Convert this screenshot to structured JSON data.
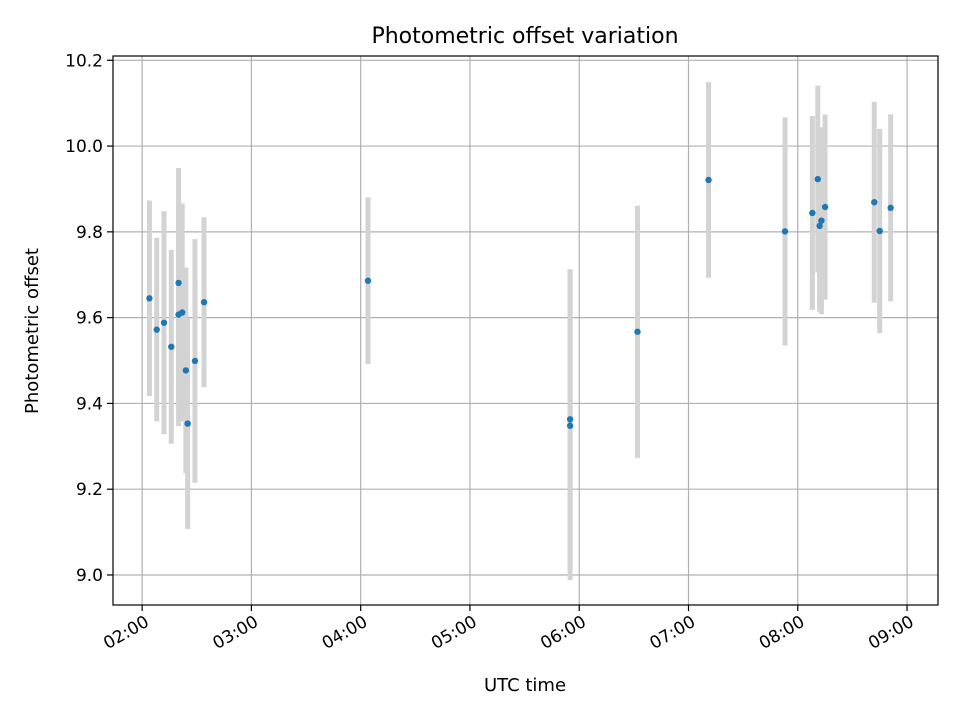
{
  "chart_data": {
    "type": "scatter",
    "title": "Photometric offset variation",
    "xlabel": "UTC time",
    "ylabel": "Photometric offset",
    "x_ticks": [
      "02:00",
      "03:00",
      "04:00",
      "05:00",
      "06:00",
      "07:00",
      "08:00",
      "09:00"
    ],
    "y_ticks": [
      "9.0",
      "9.2",
      "9.4",
      "9.6",
      "9.8",
      "10.0",
      "10.2"
    ],
    "xlim": [
      "01:44",
      "09:17"
    ],
    "ylim": [
      8.93,
      10.21
    ],
    "grid": true,
    "marker_color": "#1f77b4",
    "errorbar_color": "#d3d3d3",
    "series": [
      {
        "points": [
          {
            "t": "02:04",
            "y": 9.645,
            "err": 0.228
          },
          {
            "t": "02:08",
            "y": 9.572,
            "err": 0.214
          },
          {
            "t": "02:12",
            "y": 9.588,
            "err": 0.26
          },
          {
            "t": "02:16",
            "y": 9.532,
            "err": 0.226
          },
          {
            "t": "02:20",
            "y": 9.607,
            "err": 0.26
          },
          {
            "t": "02:20",
            "y": 9.681,
            "err": 0.268
          },
          {
            "t": "02:22",
            "y": 9.612,
            "err": 0.254
          },
          {
            "t": "02:24",
            "y": 9.477,
            "err": 0.24
          },
          {
            "t": "02:25",
            "y": 9.353,
            "err": 0.246
          },
          {
            "t": "02:29",
            "y": 9.499,
            "err": 0.284
          },
          {
            "t": "02:34",
            "y": 9.636,
            "err": 0.198
          },
          {
            "t": "04:04",
            "y": 9.686,
            "err": 0.194
          },
          {
            "t": "05:55",
            "y": 9.363,
            "err": 0.35
          },
          {
            "t": "05:55",
            "y": 9.348,
            "err": 0.36
          },
          {
            "t": "06:32",
            "y": 9.567,
            "err": 0.294
          },
          {
            "t": "07:11",
            "y": 9.921,
            "err": 0.228
          },
          {
            "t": "07:53",
            "y": 9.801,
            "err": 0.266
          },
          {
            "t": "08:08",
            "y": 9.844,
            "err": 0.226
          },
          {
            "t": "08:11",
            "y": 9.923,
            "err": 0.218
          },
          {
            "t": "08:12",
            "y": 9.814,
            "err": 0.2
          },
          {
            "t": "08:13",
            "y": 9.826,
            "err": 0.218
          },
          {
            "t": "08:15",
            "y": 9.858,
            "err": 0.216
          },
          {
            "t": "08:42",
            "y": 9.869,
            "err": 0.234
          },
          {
            "t": "08:45",
            "y": 9.802,
            "err": 0.238
          },
          {
            "t": "08:51",
            "y": 9.856,
            "err": 0.218
          }
        ]
      }
    ]
  }
}
